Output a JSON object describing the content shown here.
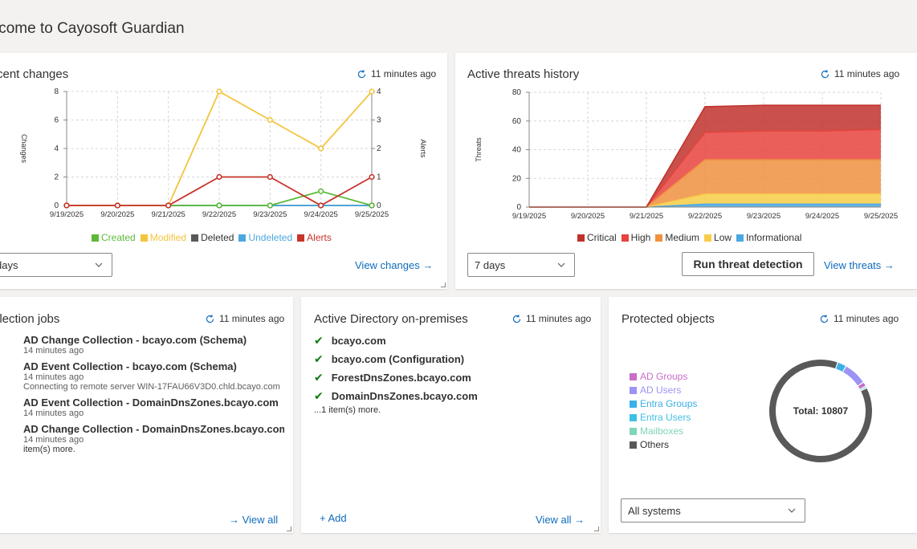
{
  "welcome_title": "lcome to Cayosoft Guardian",
  "colors": {
    "created": "#5db93a",
    "modified": "#f2c53d",
    "deleted": "#595959",
    "undeleted": "#4aa8e0",
    "alerts": "#c8332a",
    "critical": "#c0312b",
    "high": "#e8433e",
    "medium": "#f0913f",
    "low": "#f7cd48",
    "informational": "#4aa8e0",
    "link": "#0f6cbd",
    "check": "#107c10"
  },
  "recent_changes": {
    "title": "cent changes",
    "refresh": "11 minutes ago",
    "left_axis_label": "Changes",
    "right_axis_label": "Alerts",
    "range_select": "days",
    "view_link": "View changes →"
  },
  "threats": {
    "title": "Active threats history",
    "refresh": "11 minutes ago",
    "y_axis_label": "Threats",
    "range_select": "7 days",
    "run_button": "Run threat detection",
    "view_link": "View threats →"
  },
  "jobs": {
    "title": "llection jobs",
    "refresh": "11 minutes ago",
    "items": [
      {
        "name": "AD Change Collection - bcayo.com (Schema)",
        "time": "14 minutes ago",
        "status": ""
      },
      {
        "name": "AD Event Collection - bcayo.com (Schema)",
        "time": "14 minutes ago",
        "status": "Connecting to remote server WIN-17FAU66V3D0.chld.bcayo.com"
      },
      {
        "name": "AD Event Collection - DomainDnsZones.bcayo.com",
        "time": "14 minutes ago",
        "status": ""
      },
      {
        "name": "AD Change Collection - DomainDnsZones.bcayo.com",
        "time": "14 minutes ago",
        "status": ""
      }
    ],
    "more": "item(s) more.",
    "view_all": "→ View all"
  },
  "ad_onprem": {
    "title": "Active Directory on-premises",
    "refresh": "11 minutes ago",
    "domains": [
      "bcayo.com",
      "bcayo.com (Configuration)",
      "ForestDnsZones.bcayo.com",
      "DomainDnsZones.bcayo.com"
    ],
    "more": "...1 item(s) more.",
    "add": "+ Add",
    "view_all": "View all →"
  },
  "protected": {
    "title": "Protected objects",
    "refresh": "11 minutes ago",
    "legend": [
      {
        "label": "AD Groups",
        "color": "#c86dc8"
      },
      {
        "label": "AD Users",
        "color": "#9c93f5"
      },
      {
        "label": "Entra Groups",
        "color": "#3ab0e8"
      },
      {
        "label": "Entra Users",
        "color": "#3fc0e6"
      },
      {
        "label": "Mailboxes",
        "color": "#7fd5b8"
      },
      {
        "label": "Others",
        "color": "#595959"
      }
    ],
    "total": "Total: 10807",
    "system_select": "All systems"
  },
  "chart_data": [
    {
      "type": "line",
      "title": "Recent changes",
      "x": [
        "9/19/2025",
        "9/20/2025",
        "9/21/2025",
        "9/22/2025",
        "9/23/2025",
        "9/24/2025",
        "9/25/2025"
      ],
      "left_ylim": [
        0,
        8
      ],
      "left_yticks": [
        "0",
        "2",
        "4",
        "6",
        "8"
      ],
      "right_ylim": [
        0,
        4
      ],
      "right_yticks": [
        "0",
        "1",
        "2",
        "3",
        "4"
      ],
      "series": [
        {
          "name": "Created",
          "axis": "left",
          "color": "#5db93a",
          "values": [
            0,
            0,
            0,
            0,
            0,
            1,
            0
          ]
        },
        {
          "name": "Modified",
          "axis": "left",
          "color": "#f2c53d",
          "values": [
            0,
            0,
            0,
            8,
            6,
            4,
            8
          ]
        },
        {
          "name": "Deleted",
          "axis": "left",
          "color": "#595959",
          "values": [
            0,
            0,
            0,
            0,
            0,
            0,
            0
          ]
        },
        {
          "name": "Undeleted",
          "axis": "left",
          "color": "#4aa8e0",
          "values": [
            0,
            0,
            0,
            0,
            0,
            0,
            0
          ]
        },
        {
          "name": "Alerts",
          "axis": "right",
          "color": "#c8332a",
          "values": [
            0,
            0,
            0,
            1,
            1,
            0,
            1
          ]
        }
      ]
    },
    {
      "type": "area",
      "title": "Active threats history",
      "x": [
        "9/19/2025",
        "9/20/2025",
        "9/21/2025",
        "9/22/2025",
        "9/23/2025",
        "9/24/2025",
        "9/25/2025"
      ],
      "ylim": [
        0,
        80
      ],
      "yticks": [
        "0",
        "20",
        "40",
        "60",
        "80"
      ],
      "series": [
        {
          "name": "Informational",
          "color": "#4aa8e0",
          "values": [
            0,
            0,
            0,
            2,
            2,
            2,
            2
          ]
        },
        {
          "name": "Low",
          "color": "#f7cd48",
          "values": [
            0,
            0,
            0,
            7,
            7,
            7,
            7
          ]
        },
        {
          "name": "Medium",
          "color": "#f0913f",
          "values": [
            0,
            0,
            0,
            24,
            24,
            24,
            24
          ]
        },
        {
          "name": "High",
          "color": "#e8433e",
          "values": [
            0,
            0,
            0,
            19,
            20,
            20,
            21
          ]
        },
        {
          "name": "Critical",
          "color": "#c0312b",
          "values": [
            0,
            0,
            0,
            18,
            18,
            18,
            17
          ]
        }
      ]
    },
    {
      "type": "pie",
      "title": "Protected objects",
      "labels": [
        "AD Groups",
        "AD Users",
        "Entra Groups",
        "Entra Users",
        "Mailboxes",
        "Others"
      ],
      "values": [
        150,
        800,
        300,
        50,
        20,
        9487
      ],
      "total": 10807
    }
  ]
}
